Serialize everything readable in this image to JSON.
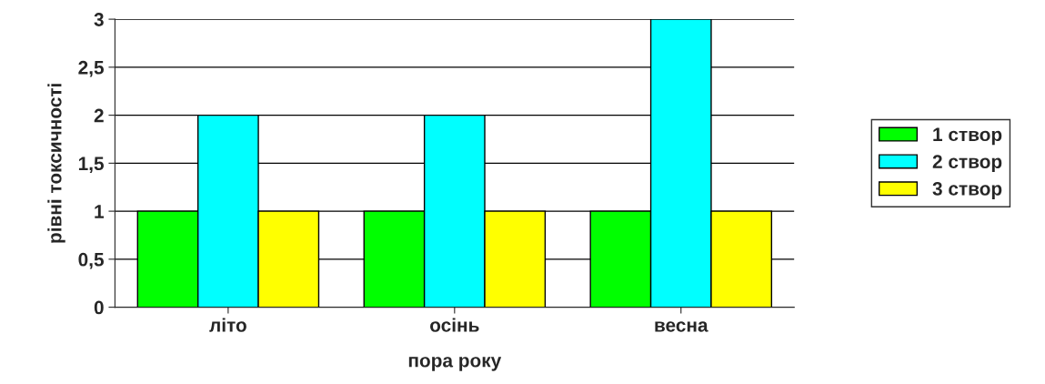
{
  "chart_data": {
    "type": "bar",
    "xlabel": "пора року",
    "ylabel": "рівні токсичності",
    "categories": [
      "літо",
      "осінь",
      "весна"
    ],
    "series": [
      {
        "name": "1 створ",
        "color": "#00ff00",
        "values": [
          1,
          1,
          1
        ]
      },
      {
        "name": "2 створ",
        "color": "#00ffff",
        "values": [
          2,
          2,
          3
        ]
      },
      {
        "name": "3 створ",
        "color": "#ffff00",
        "values": [
          1,
          1,
          1
        ]
      }
    ],
    "ylim": [
      0,
      3
    ],
    "yticks": [
      0,
      {
        "value": 0.5,
        "label": "0,5"
      },
      1,
      {
        "value": 1.5,
        "label": "1,5"
      },
      2,
      {
        "value": 2.5,
        "label": "2,5"
      },
      3
    ],
    "grid": "y",
    "legend": "right"
  }
}
